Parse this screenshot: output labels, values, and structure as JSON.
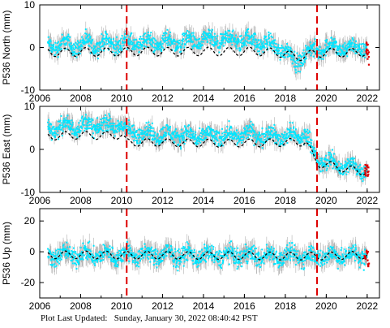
{
  "footer": {
    "label": "Plot Last Updated:",
    "timestamp": "Sunday, January 30, 2022 08:40:42 PST"
  },
  "colors": {
    "daily_points": "#00e5ff",
    "error_bars": "#b0b0b0",
    "recent_points": "#dd0000",
    "model_line": "#000000",
    "offset_lines": "#dd0000"
  },
  "chart_data": [
    {
      "type": "scatter",
      "ylabel": "P536 North (mm)",
      "xlim": [
        2006,
        2022.6
      ],
      "ylim": [
        -10,
        10
      ],
      "xticks": [
        2006,
        2008,
        2010,
        2012,
        2014,
        2016,
        2018,
        2020,
        2022
      ],
      "yticks": [
        -10,
        0,
        10
      ],
      "offsets": [
        2010.25,
        2019.55
      ],
      "series": [
        {
          "kind": "model-curve",
          "x": [
            2006.4,
            2007.0,
            2008.0,
            2009.0,
            2010.0,
            2011.0,
            2012.0,
            2013.0,
            2014.0,
            2015.0,
            2016.0,
            2017.0,
            2018.0,
            2018.5,
            2019.0,
            2020.0,
            2021.0,
            2022.0
          ],
          "y": [
            -1.0,
            -1.2,
            -1.0,
            -1.1,
            -1.0,
            -0.9,
            -1.0,
            -1.0,
            -0.9,
            -1.0,
            -0.9,
            -1.0,
            -1.4,
            -2.3,
            -1.8,
            -1.1,
            -1.3,
            -1.0
          ],
          "amplitude": 1.0
        },
        {
          "kind": "daily-scatter",
          "x": [
            2006.4,
            2008.0,
            2010.0,
            2012.0,
            2014.0,
            2016.0,
            2017.0,
            2018.0,
            2018.5,
            2019.0,
            2020.0,
            2021.0,
            2022.0
          ],
          "y": [
            0.5,
            0.6,
            1.0,
            1.2,
            1.5,
            1.8,
            1.0,
            -0.5,
            -3.5,
            -1.5,
            0.2,
            -0.2,
            0.0
          ],
          "spread": 3.0
        },
        {
          "kind": "recent-points",
          "x": [
            2021.95,
            2022.0,
            2022.05
          ],
          "y": [
            -1.0,
            0.5,
            -2.0
          ]
        }
      ]
    },
    {
      "type": "scatter",
      "ylabel": "P536 East (mm)",
      "xlim": [
        2006,
        2022.6
      ],
      "ylim": [
        -10,
        10
      ],
      "xticks": [
        2006,
        2008,
        2010,
        2012,
        2014,
        2016,
        2018,
        2020,
        2022
      ],
      "yticks": [
        -10,
        0,
        10
      ],
      "offsets": [
        2010.25,
        2019.55
      ],
      "series": [
        {
          "kind": "model-curve",
          "x": [
            2006.4,
            2007.0,
            2008.0,
            2009.0,
            2010.0,
            2010.25,
            2011.0,
            2012.0,
            2013.0,
            2014.0,
            2015.0,
            2016.0,
            2017.0,
            2018.0,
            2019.0,
            2019.55,
            2020.0,
            2021.0,
            2022.0
          ],
          "y": [
            3.0,
            3.2,
            3.3,
            3.2,
            3.3,
            1.6,
            1.6,
            1.6,
            1.5,
            1.5,
            1.4,
            1.5,
            1.5,
            1.6,
            1.7,
            -3.3,
            -3.5,
            -4.6,
            -5.2
          ],
          "amplitude": 0.9
        },
        {
          "kind": "daily-scatter",
          "x": [
            2006.4,
            2008.0,
            2010.0,
            2010.25,
            2012.0,
            2014.0,
            2016.0,
            2018.0,
            2019.0,
            2019.55,
            2020.0,
            2021.0,
            2022.0
          ],
          "y": [
            5.0,
            5.5,
            5.5,
            4.0,
            3.5,
            3.0,
            3.5,
            3.0,
            3.5,
            -2.5,
            -3.0,
            -4.0,
            -4.5
          ],
          "spread": 3.0
        },
        {
          "kind": "recent-points",
          "x": [
            2021.9,
            2022.0,
            2022.05
          ],
          "y": [
            -5.0,
            -3.5,
            -6.0
          ]
        }
      ]
    },
    {
      "type": "scatter",
      "ylabel": "P536 Up (mm)",
      "xlim": [
        2006,
        2022.6
      ],
      "ylim": [
        -30,
        28
      ],
      "xticks": [
        2006,
        2008,
        2010,
        2012,
        2014,
        2016,
        2018,
        2020,
        2022
      ],
      "xticklabels": [
        "2006",
        "2008",
        "2010",
        "2012",
        "2014",
        "2016",
        "2018",
        "2020",
        "2022"
      ],
      "yticks": [
        -20,
        0,
        20
      ],
      "offsets": [
        2010.25,
        2019.55
      ],
      "series": [
        {
          "kind": "model-curve",
          "x": [
            2006.4,
            2008.0,
            2010.0,
            2012.0,
            2014.0,
            2016.0,
            2018.0,
            2020.0,
            2022.0
          ],
          "y": [
            -2.0,
            -2.0,
            -2.2,
            -2.2,
            -2.5,
            -2.5,
            -2.8,
            -2.8,
            -2.0
          ],
          "amplitude": 2.5
        },
        {
          "kind": "daily-scatter",
          "x": [
            2006.4,
            2008.0,
            2010.0,
            2012.0,
            2014.0,
            2016.0,
            2018.0,
            2020.0,
            2022.0
          ],
          "y": [
            -2.0,
            -2.0,
            -2.2,
            -2.2,
            -2.5,
            -2.5,
            -2.8,
            -2.8,
            -2.0
          ],
          "spread": 9.0
        },
        {
          "kind": "recent-points",
          "x": [
            2021.9,
            2022.0,
            2022.05
          ],
          "y": [
            -3.0,
            0.0,
            -8.0
          ]
        }
      ]
    }
  ]
}
